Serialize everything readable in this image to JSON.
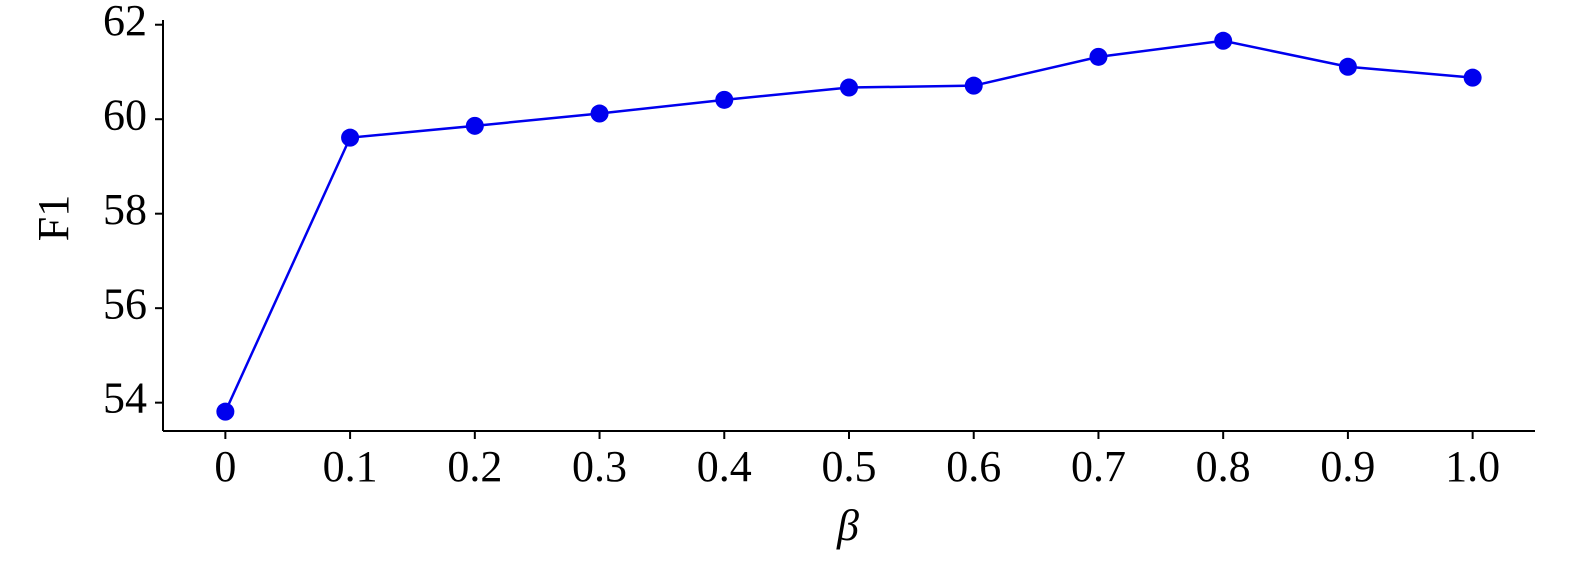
{
  "chart_data": {
    "type": "line",
    "x": [
      0,
      0.1,
      0.2,
      0.3,
      0.4,
      0.5,
      0.6,
      0.7,
      0.8,
      0.9,
      1
    ],
    "series": [
      {
        "color": "#0000ee",
        "values": [
          53.81,
          59.61,
          59.86,
          60.12,
          60.41,
          60.67,
          60.71,
          61.32,
          61.66,
          61.11,
          60.88
        ]
      }
    ],
    "xlabel": "β",
    "ylabel": "F1",
    "xlim": [
      -0.05,
      1.05
    ],
    "xticks": [
      0,
      0.1,
      0.2,
      0.3,
      0.4,
      0.5,
      0.6,
      0.7,
      0.8,
      0.9,
      {
        "value": 1,
        "label": "1.0"
      }
    ],
    "ylim": [
      53.4,
      62.1
    ],
    "yticks": [
      54,
      56,
      58,
      60,
      62
    ],
    "grid": false
  }
}
